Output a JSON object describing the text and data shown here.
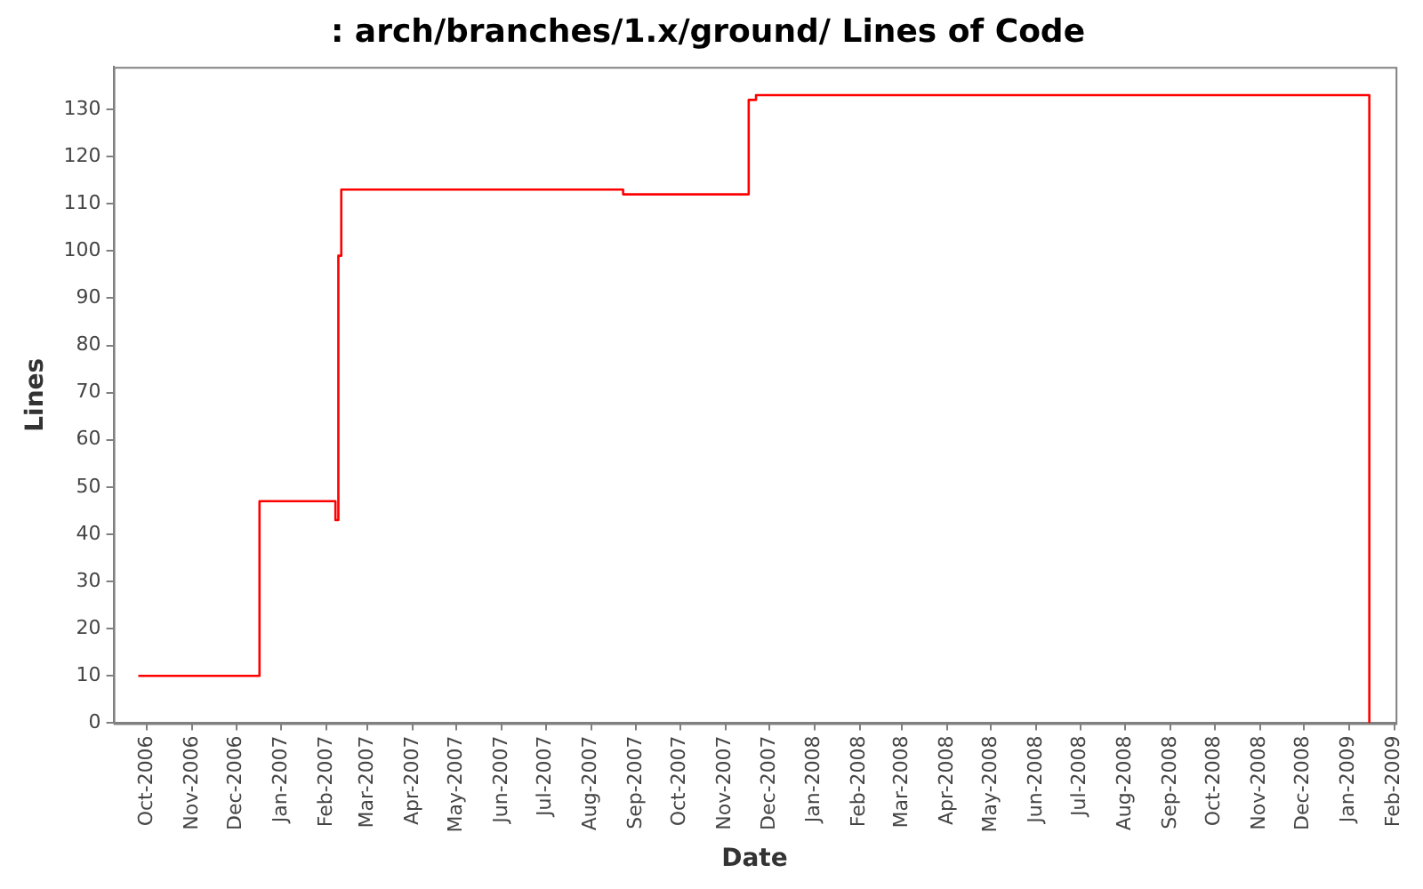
{
  "chart_data": {
    "type": "step",
    "title": ": arch/branches/1.x/ground/ Lines of Code",
    "xlabel": "Date",
    "ylabel": "Lines",
    "x": [
      "2006-09-25",
      "2006-12-17",
      "2007-02-07",
      "2007-02-09",
      "2007-02-11",
      "2007-08-23",
      "2007-11-17",
      "2007-11-22",
      "2009-01-15"
    ],
    "series": [
      {
        "color": "#ff0000",
        "values": [
          10,
          47,
          43,
          99,
          113,
          112,
          132,
          133,
          0
        ]
      }
    ],
    "xlim": [
      "2006-09-08",
      "2009-02-02"
    ],
    "xticks": [
      {
        "value": "2006-10-01",
        "label": "Oct-2006"
      },
      {
        "value": "2006-11-01",
        "label": "Nov-2006"
      },
      {
        "value": "2006-12-01",
        "label": "Dec-2006"
      },
      {
        "value": "2007-01-01",
        "label": "Jan-2007"
      },
      {
        "value": "2007-02-01",
        "label": "Feb-2007"
      },
      {
        "value": "2007-03-01",
        "label": "Mar-2007"
      },
      {
        "value": "2007-04-01",
        "label": "Apr-2007"
      },
      {
        "value": "2007-05-01",
        "label": "May-2007"
      },
      {
        "value": "2007-06-01",
        "label": "Jun-2007"
      },
      {
        "value": "2007-07-01",
        "label": "Jul-2007"
      },
      {
        "value": "2007-08-01",
        "label": "Aug-2007"
      },
      {
        "value": "2007-09-01",
        "label": "Sep-2007"
      },
      {
        "value": "2007-10-01",
        "label": "Oct-2007"
      },
      {
        "value": "2007-11-01",
        "label": "Nov-2007"
      },
      {
        "value": "2007-12-01",
        "label": "Dec-2007"
      },
      {
        "value": "2008-01-01",
        "label": "Jan-2008"
      },
      {
        "value": "2008-02-01",
        "label": "Feb-2008"
      },
      {
        "value": "2008-03-01",
        "label": "Mar-2008"
      },
      {
        "value": "2008-04-01",
        "label": "Apr-2008"
      },
      {
        "value": "2008-05-01",
        "label": "May-2008"
      },
      {
        "value": "2008-06-01",
        "label": "Jun-2008"
      },
      {
        "value": "2008-07-01",
        "label": "Jul-2008"
      },
      {
        "value": "2008-08-01",
        "label": "Aug-2008"
      },
      {
        "value": "2008-09-01",
        "label": "Sep-2008"
      },
      {
        "value": "2008-10-01",
        "label": "Oct-2008"
      },
      {
        "value": "2008-11-01",
        "label": "Nov-2008"
      },
      {
        "value": "2008-12-01",
        "label": "Dec-2008"
      },
      {
        "value": "2009-01-01",
        "label": "Jan-2009"
      },
      {
        "value": "2009-02-01",
        "label": "Feb-2009"
      }
    ],
    "ylim": [
      0,
      139
    ],
    "yticks": [
      0,
      10,
      20,
      30,
      40,
      50,
      60,
      70,
      80,
      90,
      100,
      110,
      120,
      130
    ],
    "grid": false,
    "legend": false,
    "marker": "none",
    "line_style": "solid"
  }
}
